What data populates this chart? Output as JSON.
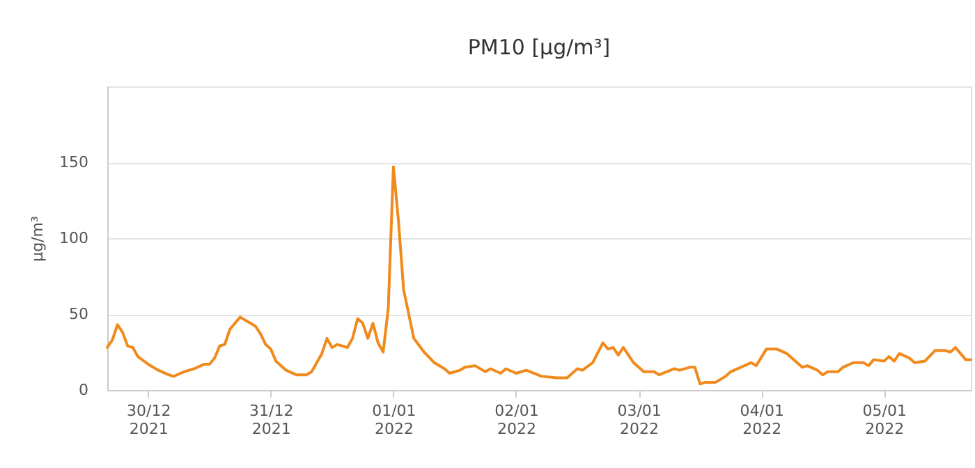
{
  "chart_data": {
    "type": "line",
    "title": "PM10 [µg/m³]",
    "ylabel": "µg/m³",
    "x": [
      "2021-12-29T16:00",
      "2021-12-29T17:00",
      "2021-12-29T18:00",
      "2021-12-29T19:00",
      "2021-12-29T20:00",
      "2021-12-29T21:00",
      "2021-12-29T22:00",
      "2021-12-30T00:00",
      "2021-12-30T02:00",
      "2021-12-30T04:00",
      "2021-12-30T05:00",
      "2021-12-30T07:00",
      "2021-12-30T09:00",
      "2021-12-30T11:00",
      "2021-12-30T12:00",
      "2021-12-30T13:00",
      "2021-12-30T14:00",
      "2021-12-30T15:00",
      "2021-12-30T16:00",
      "2021-12-30T18:00",
      "2021-12-30T20:00",
      "2021-12-30T21:00",
      "2021-12-30T22:00",
      "2021-12-30T23:00",
      "2021-12-31T00:00",
      "2021-12-31T01:00",
      "2021-12-31T03:00",
      "2021-12-31T05:00",
      "2021-12-31T07:00",
      "2021-12-31T08:00",
      "2021-12-31T09:00",
      "2021-12-31T10:00",
      "2021-12-31T11:00",
      "2021-12-31T12:00",
      "2021-12-31T13:00",
      "2021-12-31T15:00",
      "2021-12-31T16:00",
      "2021-12-31T17:00",
      "2021-12-31T18:00",
      "2021-12-31T19:00",
      "2021-12-31T20:00",
      "2021-12-31T21:00",
      "2021-12-31T22:00",
      "2021-12-31T23:00",
      "2022-01-01T00:00",
      "2022-01-01T01:00",
      "2022-01-01T02:00",
      "2022-01-01T04:00",
      "2022-01-01T06:00",
      "2022-01-01T08:00",
      "2022-01-01T10:00",
      "2022-01-01T11:00",
      "2022-01-01T13:00",
      "2022-01-01T14:00",
      "2022-01-01T16:00",
      "2022-01-01T18:00",
      "2022-01-01T19:00",
      "2022-01-01T21:00",
      "2022-01-01T22:00",
      "2022-01-02T00:00",
      "2022-01-02T02:00",
      "2022-01-02T05:00",
      "2022-01-02T08:00",
      "2022-01-02T10:00",
      "2022-01-02T12:00",
      "2022-01-02T13:00",
      "2022-01-02T15:00",
      "2022-01-02T17:00",
      "2022-01-02T18:00",
      "2022-01-02T19:00",
      "2022-01-02T20:00",
      "2022-01-02T21:00",
      "2022-01-02T23:00",
      "2022-01-03T01:00",
      "2022-01-03T03:00",
      "2022-01-03T04:00",
      "2022-01-03T07:00",
      "2022-01-03T08:00",
      "2022-01-03T10:00",
      "2022-01-03T11:00",
      "2022-01-03T12:00",
      "2022-01-03T13:00",
      "2022-01-03T15:00",
      "2022-01-03T17:00",
      "2022-01-03T18:00",
      "2022-01-03T20:00",
      "2022-01-03T22:00",
      "2022-01-03T23:00",
      "2022-01-04T01:00",
      "2022-01-04T03:00",
      "2022-01-04T05:00",
      "2022-01-04T07:00",
      "2022-01-04T08:00",
      "2022-01-04T09:00",
      "2022-01-04T11:00",
      "2022-01-04T12:00",
      "2022-01-04T13:00",
      "2022-01-04T15:00",
      "2022-01-04T16:00",
      "2022-01-04T18:00",
      "2022-01-04T20:00",
      "2022-01-04T21:00",
      "2022-01-04T22:00",
      "2022-01-05T00:00",
      "2022-01-05T01:00",
      "2022-01-05T02:00",
      "2022-01-05T03:00",
      "2022-01-05T05:00",
      "2022-01-05T06:00",
      "2022-01-05T08:00",
      "2022-01-05T10:00",
      "2022-01-05T12:00",
      "2022-01-05T13:00",
      "2022-01-05T14:00",
      "2022-01-05T16:00",
      "2022-01-05T17:00"
    ],
    "series": [
      {
        "color": "#f08a1c",
        "values": [
          28,
          33,
          43,
          38,
          29,
          28,
          22,
          17,
          13,
          10,
          9,
          12,
          14,
          17,
          17,
          21,
          29,
          30,
          40,
          48,
          44,
          42,
          37,
          30,
          27,
          19,
          13,
          10,
          10,
          12,
          18,
          24,
          34,
          28,
          30,
          28,
          34,
          47,
          44,
          34,
          44,
          31,
          25,
          54,
          147,
          111,
          66,
          34,
          25,
          18,
          14,
          11,
          13,
          15,
          16,
          12,
          14,
          11,
          14,
          11,
          13,
          9,
          8,
          8,
          14,
          13,
          18,
          31,
          27,
          28,
          23,
          28,
          18,
          12,
          12,
          10,
          14,
          13,
          15,
          15,
          4,
          5,
          5,
          9,
          12,
          15,
          18,
          16,
          27,
          27,
          24,
          18,
          15,
          16,
          13,
          10,
          12,
          12,
          15,
          18,
          18,
          16,
          20,
          19,
          22,
          19,
          24,
          21,
          18,
          19,
          26,
          26,
          25,
          28,
          20,
          20
        ]
      }
    ],
    "xlim": [
      "2021-12-29T16:00",
      "2022-01-05T17:00"
    ],
    "xticks": [
      {
        "value": "2021-12-30",
        "label": "30/12\n2021"
      },
      {
        "value": "2021-12-31",
        "label": "31/12\n2021"
      },
      {
        "value": "2022-01-01",
        "label": "01/01\n2022"
      },
      {
        "value": "2022-01-02",
        "label": "02/01\n2022"
      },
      {
        "value": "2022-01-03",
        "label": "03/01\n2022"
      },
      {
        "value": "2022-01-04",
        "label": "04/01\n2022"
      },
      {
        "value": "2022-01-05",
        "label": "05/01\n2022"
      }
    ],
    "ylim": [
      0,
      200
    ],
    "yticks": [
      0,
      50,
      100,
      150,
      {
        "value": 200,
        "label": null
      }
    ],
    "grid": "y",
    "marker": "none",
    "line_style": "solid"
  }
}
